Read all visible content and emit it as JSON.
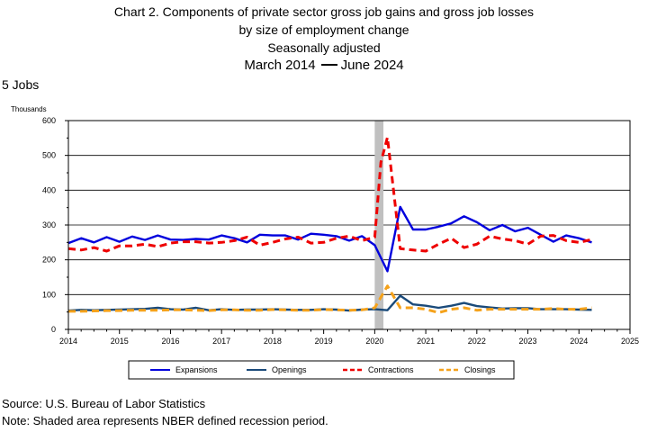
{
  "header": {
    "line1": "Chart 2. Components of private sector gross job gains and gross job losses",
    "line2": "by size of employment change",
    "line3": "Seasonally adjusted",
    "period_start": "March 2014",
    "period_end": "June 2024",
    "size_class": "5 Jobs"
  },
  "footer": {
    "source": "Source: U.S. Bureau of Labor Statistics",
    "note": "Note: Shaded area represents NBER defined recession period."
  },
  "chart_data": {
    "type": "line",
    "ylabel": "Thousands",
    "xlabel": "",
    "ylim": [
      0,
      600
    ],
    "xlim": [
      2014,
      2025
    ],
    "yticks": [
      "0",
      "100",
      "200",
      "300",
      "400",
      "500",
      "600"
    ],
    "xticks": [
      "2014",
      "2015",
      "2016",
      "2017",
      "2018",
      "2019",
      "2020",
      "2021",
      "2022",
      "2023",
      "2024",
      "2025"
    ],
    "grid": "horizontal",
    "recession": [
      2020.0,
      2020.17
    ],
    "legend_position": "bottom",
    "series": [
      {
        "name": "Expansions",
        "color": "#0000dd",
        "style": "solid",
        "x": [
          2014.0,
          2014.25,
          2014.5,
          2014.75,
          2015.0,
          2015.25,
          2015.5,
          2015.75,
          2016.0,
          2016.25,
          2016.5,
          2016.75,
          2017.0,
          2017.25,
          2017.5,
          2017.75,
          2018.0,
          2018.25,
          2018.5,
          2018.75,
          2019.0,
          2019.25,
          2019.5,
          2019.75,
          2020.0,
          2020.25,
          2020.5,
          2020.75,
          2021.0,
          2021.25,
          2021.5,
          2021.75,
          2022.0,
          2022.25,
          2022.5,
          2022.75,
          2023.0,
          2023.25,
          2023.5,
          2023.75,
          2024.0,
          2024.25
        ],
        "y": [
          248,
          262,
          250,
          265,
          252,
          267,
          257,
          270,
          258,
          257,
          260,
          258,
          270,
          262,
          250,
          272,
          270,
          270,
          258,
          275,
          272,
          268,
          255,
          268,
          242,
          167,
          352,
          287,
          287,
          295,
          305,
          325,
          308,
          285,
          300,
          282,
          292,
          272,
          252,
          270,
          262,
          250
        ]
      },
      {
        "name": "Openings",
        "color": "#1a4a7a",
        "style": "solid",
        "x": [
          2014.0,
          2014.25,
          2014.5,
          2014.75,
          2015.0,
          2015.25,
          2015.5,
          2015.75,
          2016.0,
          2016.25,
          2016.5,
          2016.75,
          2017.0,
          2017.25,
          2017.5,
          2017.75,
          2018.0,
          2018.25,
          2018.5,
          2018.75,
          2019.0,
          2019.25,
          2019.5,
          2019.75,
          2020.0,
          2020.25,
          2020.5,
          2020.75,
          2021.0,
          2021.25,
          2021.5,
          2021.75,
          2022.0,
          2022.25,
          2022.5,
          2022.75,
          2023.0,
          2023.25,
          2023.5,
          2023.75,
          2024.0,
          2024.25
        ],
        "y": [
          54,
          56,
          55,
          56,
          57,
          58,
          59,
          62,
          58,
          57,
          62,
          55,
          58,
          56,
          57,
          57,
          58,
          57,
          56,
          56,
          58,
          57,
          54,
          57,
          58,
          55,
          97,
          72,
          68,
          62,
          68,
          76,
          67,
          63,
          60,
          61,
          61,
          58,
          58,
          58,
          57,
          56
        ]
      },
      {
        "name": "Contractions",
        "color": "#ee0000",
        "style": "dashed",
        "x": [
          2014.0,
          2014.25,
          2014.5,
          2014.75,
          2015.0,
          2015.25,
          2015.5,
          2015.75,
          2016.0,
          2016.25,
          2016.5,
          2016.75,
          2017.0,
          2017.25,
          2017.5,
          2017.75,
          2018.0,
          2018.25,
          2018.5,
          2018.75,
          2019.0,
          2019.25,
          2019.5,
          2019.75,
          2020.0,
          2020.12,
          2020.25,
          2020.5,
          2020.75,
          2021.0,
          2021.25,
          2021.5,
          2021.75,
          2022.0,
          2022.25,
          2022.5,
          2022.75,
          2023.0,
          2023.25,
          2023.5,
          2023.75,
          2024.0,
          2024.25
        ],
        "y": [
          232,
          228,
          235,
          225,
          240,
          240,
          245,
          238,
          248,
          252,
          252,
          248,
          250,
          255,
          265,
          242,
          250,
          260,
          265,
          248,
          250,
          262,
          268,
          255,
          265,
          480,
          552,
          232,
          228,
          225,
          245,
          262,
          235,
          245,
          268,
          260,
          255,
          245,
          268,
          270,
          255,
          250,
          258
        ]
      },
      {
        "name": "Closings",
        "color": "#f5a21b",
        "style": "dashed",
        "x": [
          2014.0,
          2014.25,
          2014.5,
          2014.75,
          2015.0,
          2015.25,
          2015.5,
          2015.75,
          2016.0,
          2016.25,
          2016.5,
          2016.75,
          2017.0,
          2017.25,
          2017.5,
          2017.75,
          2018.0,
          2018.25,
          2018.5,
          2018.75,
          2019.0,
          2019.25,
          2019.5,
          2019.75,
          2020.0,
          2020.25,
          2020.5,
          2020.75,
          2021.0,
          2021.25,
          2021.5,
          2021.75,
          2022.0,
          2022.25,
          2022.5,
          2022.75,
          2023.0,
          2023.25,
          2023.5,
          2023.75,
          2024.0,
          2024.25
        ],
        "y": [
          52,
          52,
          53,
          54,
          54,
          55,
          55,
          55,
          56,
          56,
          55,
          54,
          56,
          56,
          55,
          55,
          57,
          56,
          55,
          55,
          57,
          56,
          55,
          56,
          62,
          125,
          62,
          62,
          58,
          48,
          58,
          62,
          55,
          58,
          58,
          58,
          58,
          58,
          60,
          58,
          58,
          62
        ]
      }
    ]
  }
}
